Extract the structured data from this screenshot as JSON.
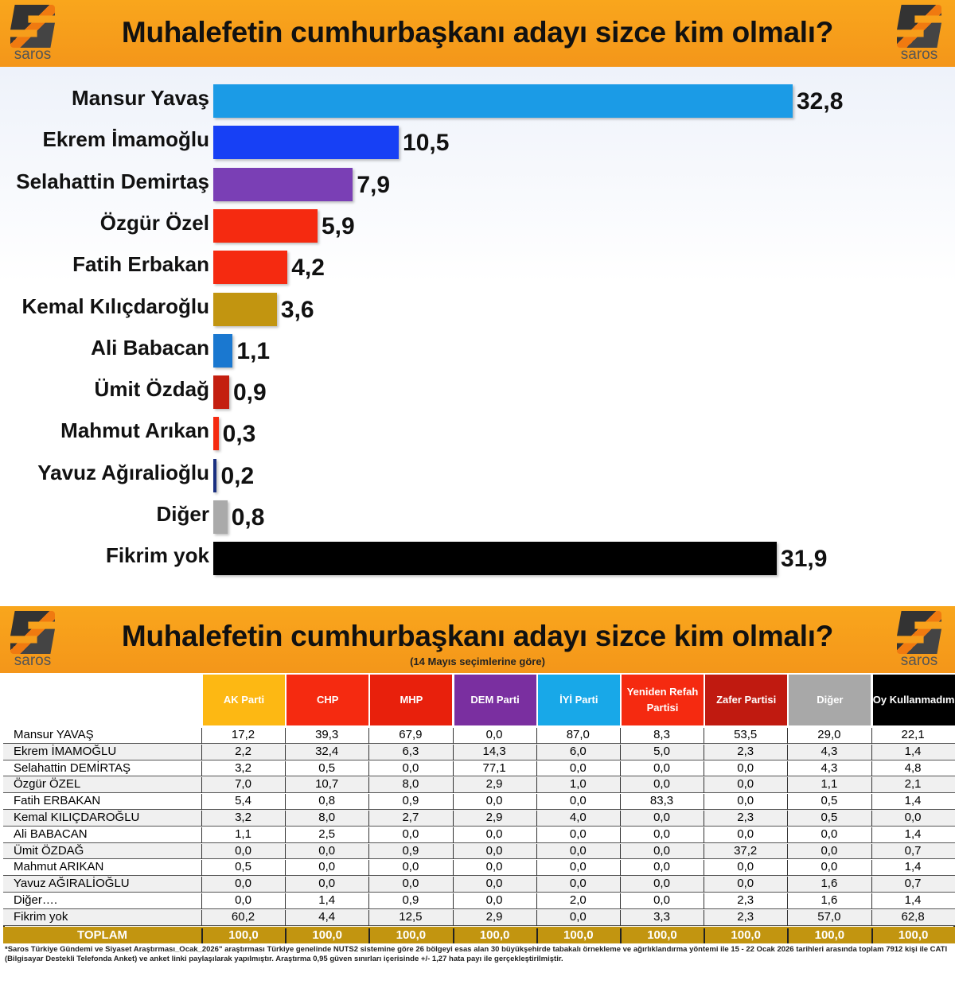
{
  "brand": "saros",
  "title": "Muhalefetin cumhurbaşkanı adayı sizce kim olmalı?",
  "table_subtitle": "(14 Mayıs seçimlerine göre)",
  "chart_data": {
    "type": "bar",
    "orientation": "horizontal",
    "title": "Muhalefetin cumhurbaşkanı adayı sizce kim olmalı?",
    "categories": [
      "Mansur Yavaş",
      "Ekrem İmamoğlu",
      "Selahattin Demirtaş",
      "Özgür Özel",
      "Fatih Erbakan",
      "Kemal Kılıçdaroğlu",
      "Ali Babacan",
      "Ümit Özdağ",
      "Mahmut Arıkan",
      "Yavuz Ağıralioğlu",
      "Diğer",
      "Fikrim yok"
    ],
    "values": [
      32.8,
      10.5,
      7.9,
      5.9,
      4.2,
      3.6,
      1.1,
      0.9,
      0.3,
      0.2,
      0.8,
      31.9
    ],
    "labels": [
      "32,8",
      "10,5",
      "7,9",
      "5,9",
      "4,2",
      "3,6",
      "1,1",
      "0,9",
      "0,3",
      "0,2",
      "0,8",
      "31,9"
    ],
    "colors": [
      "#1b9be6",
      "#1740f5",
      "#7a3fb5",
      "#f52a10",
      "#f52a10",
      "#c29510",
      "#1a78d0",
      "#c41f10",
      "#f52a10",
      "#1a2f80",
      "#aaaaaa",
      "#000000"
    ],
    "xlim": [
      0,
      33
    ]
  },
  "table": {
    "columns": [
      {
        "label": "AK Parti",
        "color": "#fdb813"
      },
      {
        "label": "CHP",
        "color": "#f52a10"
      },
      {
        "label": "MHP",
        "color": "#e8200c"
      },
      {
        "label": "DEM Parti",
        "color": "#7a2fa0"
      },
      {
        "label": "İYİ Parti",
        "color": "#18a8e8"
      },
      {
        "label": "Yeniden Refah Partisi",
        "color": "#f52a10"
      },
      {
        "label": "Zafer Partisi",
        "color": "#c01a10"
      },
      {
        "label": "Diğer",
        "color": "#a8a8a8"
      },
      {
        "label": "Oy Kullanmadım",
        "color": "#000000"
      }
    ],
    "rows": [
      {
        "name": "Mansur YAVAŞ",
        "values": [
          "17,2",
          "39,3",
          "67,9",
          "0,0",
          "87,0",
          "8,3",
          "53,5",
          "29,0",
          "22,1"
        ]
      },
      {
        "name": "Ekrem İMAMOĞLU",
        "values": [
          "2,2",
          "32,4",
          "6,3",
          "14,3",
          "6,0",
          "5,0",
          "2,3",
          "4,3",
          "1,4"
        ]
      },
      {
        "name": "Selahattin DEMİRTAŞ",
        "values": [
          "3,2",
          "0,5",
          "0,0",
          "77,1",
          "0,0",
          "0,0",
          "0,0",
          "4,3",
          "4,8"
        ]
      },
      {
        "name": "Özgür ÖZEL",
        "values": [
          "7,0",
          "10,7",
          "8,0",
          "2,9",
          "1,0",
          "0,0",
          "0,0",
          "1,1",
          "2,1"
        ]
      },
      {
        "name": "Fatih ERBAKAN",
        "values": [
          "5,4",
          "0,8",
          "0,9",
          "0,0",
          "0,0",
          "83,3",
          "0,0",
          "0,5",
          "1,4"
        ]
      },
      {
        "name": "Kemal KILIÇDAROĞLU",
        "values": [
          "3,2",
          "8,0",
          "2,7",
          "2,9",
          "4,0",
          "0,0",
          "2,3",
          "0,5",
          "0,0"
        ]
      },
      {
        "name": "Ali BABACAN",
        "values": [
          "1,1",
          "2,5",
          "0,0",
          "0,0",
          "0,0",
          "0,0",
          "0,0",
          "0,0",
          "1,4"
        ]
      },
      {
        "name": "Ümit ÖZDAĞ",
        "values": [
          "0,0",
          "0,0",
          "0,9",
          "0,0",
          "0,0",
          "0,0",
          "37,2",
          "0,0",
          "0,7"
        ]
      },
      {
        "name": "Mahmut ARIKAN",
        "values": [
          "0,5",
          "0,0",
          "0,0",
          "0,0",
          "0,0",
          "0,0",
          "0,0",
          "0,0",
          "1,4"
        ]
      },
      {
        "name": "Yavuz AĞIRALİOĞLU",
        "values": [
          "0,0",
          "0,0",
          "0,0",
          "0,0",
          "0,0",
          "0,0",
          "0,0",
          "1,6",
          "0,7"
        ]
      },
      {
        "name": "Diğer….",
        "values": [
          "0,0",
          "1,4",
          "0,9",
          "0,0",
          "2,0",
          "0,0",
          "2,3",
          "1,6",
          "1,4"
        ]
      },
      {
        "name": "Fikrim yok",
        "values": [
          "60,2",
          "4,4",
          "12,5",
          "2,9",
          "0,0",
          "3,3",
          "2,3",
          "57,0",
          "62,8"
        ]
      }
    ],
    "total": {
      "name": "TOPLAM",
      "values": [
        "100,0",
        "100,0",
        "100,0",
        "100,0",
        "100,0",
        "100,0",
        "100,0",
        "100,0",
        "100,0"
      ]
    }
  },
  "footnote": "*Saros Türkiye Gündemi ve Siyaset Araştırması_Ocak_2026\" araştırması Türkiye genelinde NUTS2 sistemine göre 26 bölgeyi esas alan 30 büyükşehirde tabakalı örnekleme ve ağırlıklandırma yöntemi ile 15 - 22 Ocak 2026 tarihleri arasında toplam 7912 kişi ile CATI (Bilgisayar Destekli Telefonda Anket) ve anket linki paylaşılarak yapılmıştır. Araştırma 0,95 güven sınırları içerisinde +/- 1,27 hata payı ile gerçekleştirilmiştir."
}
